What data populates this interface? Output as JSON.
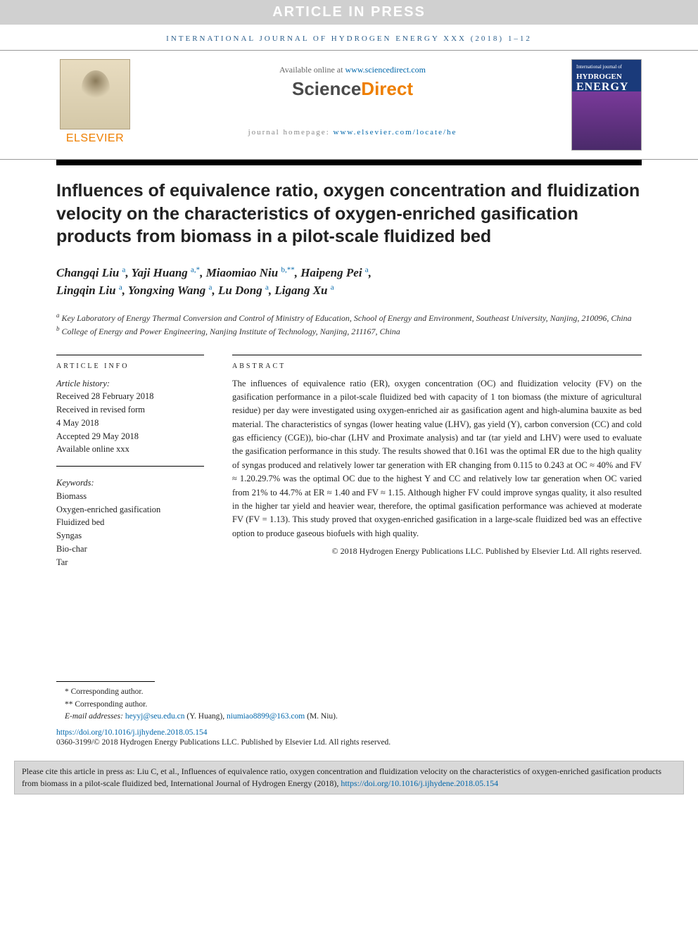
{
  "banner": "ARTICLE IN PRESS",
  "journal_ref": "INTERNATIONAL JOURNAL OF HYDROGEN ENERGY XXX (2018) 1–12",
  "header": {
    "elsevier": "ELSEVIER",
    "available_prefix": "Available online at ",
    "available_url": "www.sciencedirect.com",
    "sd_science": "Science",
    "sd_direct": "Direct",
    "homepage_prefix": "journal homepage: ",
    "homepage_url": "www.elsevier.com/locate/he",
    "cover_line1": "International journal of",
    "cover_line2": "HYDROGEN",
    "cover_line3": "ENERGY"
  },
  "title": "Influences of equivalence ratio, oxygen concentration and fluidization velocity on the characteristics of oxygen-enriched gasification products from biomass in a pilot-scale fluidized bed",
  "authors": {
    "a1": "Changqi Liu",
    "s1": "a",
    "a2": "Yaji Huang",
    "s2": "a,*",
    "a3": "Miaomiao Niu",
    "s3": "b,**",
    "a4": "Haipeng Pei",
    "s4": "a",
    "a5": "Lingqin Liu",
    "s5": "a",
    "a6": "Yongxing Wang",
    "s6": "a",
    "a7": "Lu Dong",
    "s7": "a",
    "a8": "Ligang Xu",
    "s8": "a"
  },
  "affiliations": {
    "a": "Key Laboratory of Energy Thermal Conversion and Control of Ministry of Education, School of Energy and Environment, Southeast University, Nanjing, 210096, China",
    "b": "College of Energy and Power Engineering, Nanjing Institute of Technology, Nanjing, 211167, China"
  },
  "info": {
    "label_info": "ARTICLE INFO",
    "label_abstract": "ABSTRACT",
    "history_heading": "Article history:",
    "received": "Received 28 February 2018",
    "revised1": "Received in revised form",
    "revised2": "4 May 2018",
    "accepted": "Accepted 29 May 2018",
    "online": "Available online xxx",
    "keywords_heading": "Keywords:",
    "k1": "Biomass",
    "k2": "Oxygen-enriched gasification",
    "k3": "Fluidized bed",
    "k4": "Syngas",
    "k5": "Bio-char",
    "k6": "Tar"
  },
  "abstract": "The influences of equivalence ratio (ER), oxygen concentration (OC) and fluidization velocity (FV) on the gasification performance in a pilot-scale fluidized bed with capacity of 1 ton biomass (the mixture of agricultural residue) per day were investigated using oxygen-enriched air as gasification agent and high-alumina bauxite as bed material. The characteristics of syngas (lower heating value (LHV), gas yield (Y), carbon conversion (CC) and cold gas efficiency (CGE)), bio-char (LHV and Proximate analysis) and tar (tar yield and LHV) were used to evaluate the gasification performance in this study. The results showed that 0.161 was the optimal ER due to the high quality of syngas produced and relatively lower tar generation with ER changing from 0.115 to 0.243 at OC ≈ 40% and FV ≈ 1.20.29.7% was the optimal OC due to the highest Y and CC and relatively low tar generation when OC varied from 21% to 44.7% at ER ≈ 1.40 and FV ≈ 1.15. Although higher FV could improve syngas quality, it also resulted in the higher tar yield and heavier wear, therefore, the optimal gasification performance was achieved at moderate FV (FV = 1.13). This study proved that oxygen-enriched gasification in a large-scale fluidized bed was an effective option to produce gaseous biofuels with high quality.",
  "copyright": "© 2018 Hydrogen Energy Publications LLC. Published by Elsevier Ltd. All rights reserved.",
  "footnotes": {
    "c1": "* Corresponding author.",
    "c2": "** Corresponding author.",
    "email_prefix": "E-mail addresses: ",
    "email1": "heyyj@seu.edu.cn",
    "email1_name": " (Y. Huang), ",
    "email2": "niumiao8899@163.com",
    "email2_name": " (M. Niu)."
  },
  "doi": "https://doi.org/10.1016/j.ijhydene.2018.05.154",
  "issn": "0360-3199/© 2018 Hydrogen Energy Publications LLC. Published by Elsevier Ltd. All rights reserved.",
  "citebox": {
    "text": "Please cite this article in press as: Liu C, et al., Influences of equivalence ratio, oxygen concentration and fluidization velocity on the characteristics of oxygen-enriched gasification products from biomass in a pilot-scale fluidized bed, International Journal of Hydrogen Energy (2018), ",
    "url": "https://doi.org/10.1016/j.ijhydene.2018.05.154"
  }
}
